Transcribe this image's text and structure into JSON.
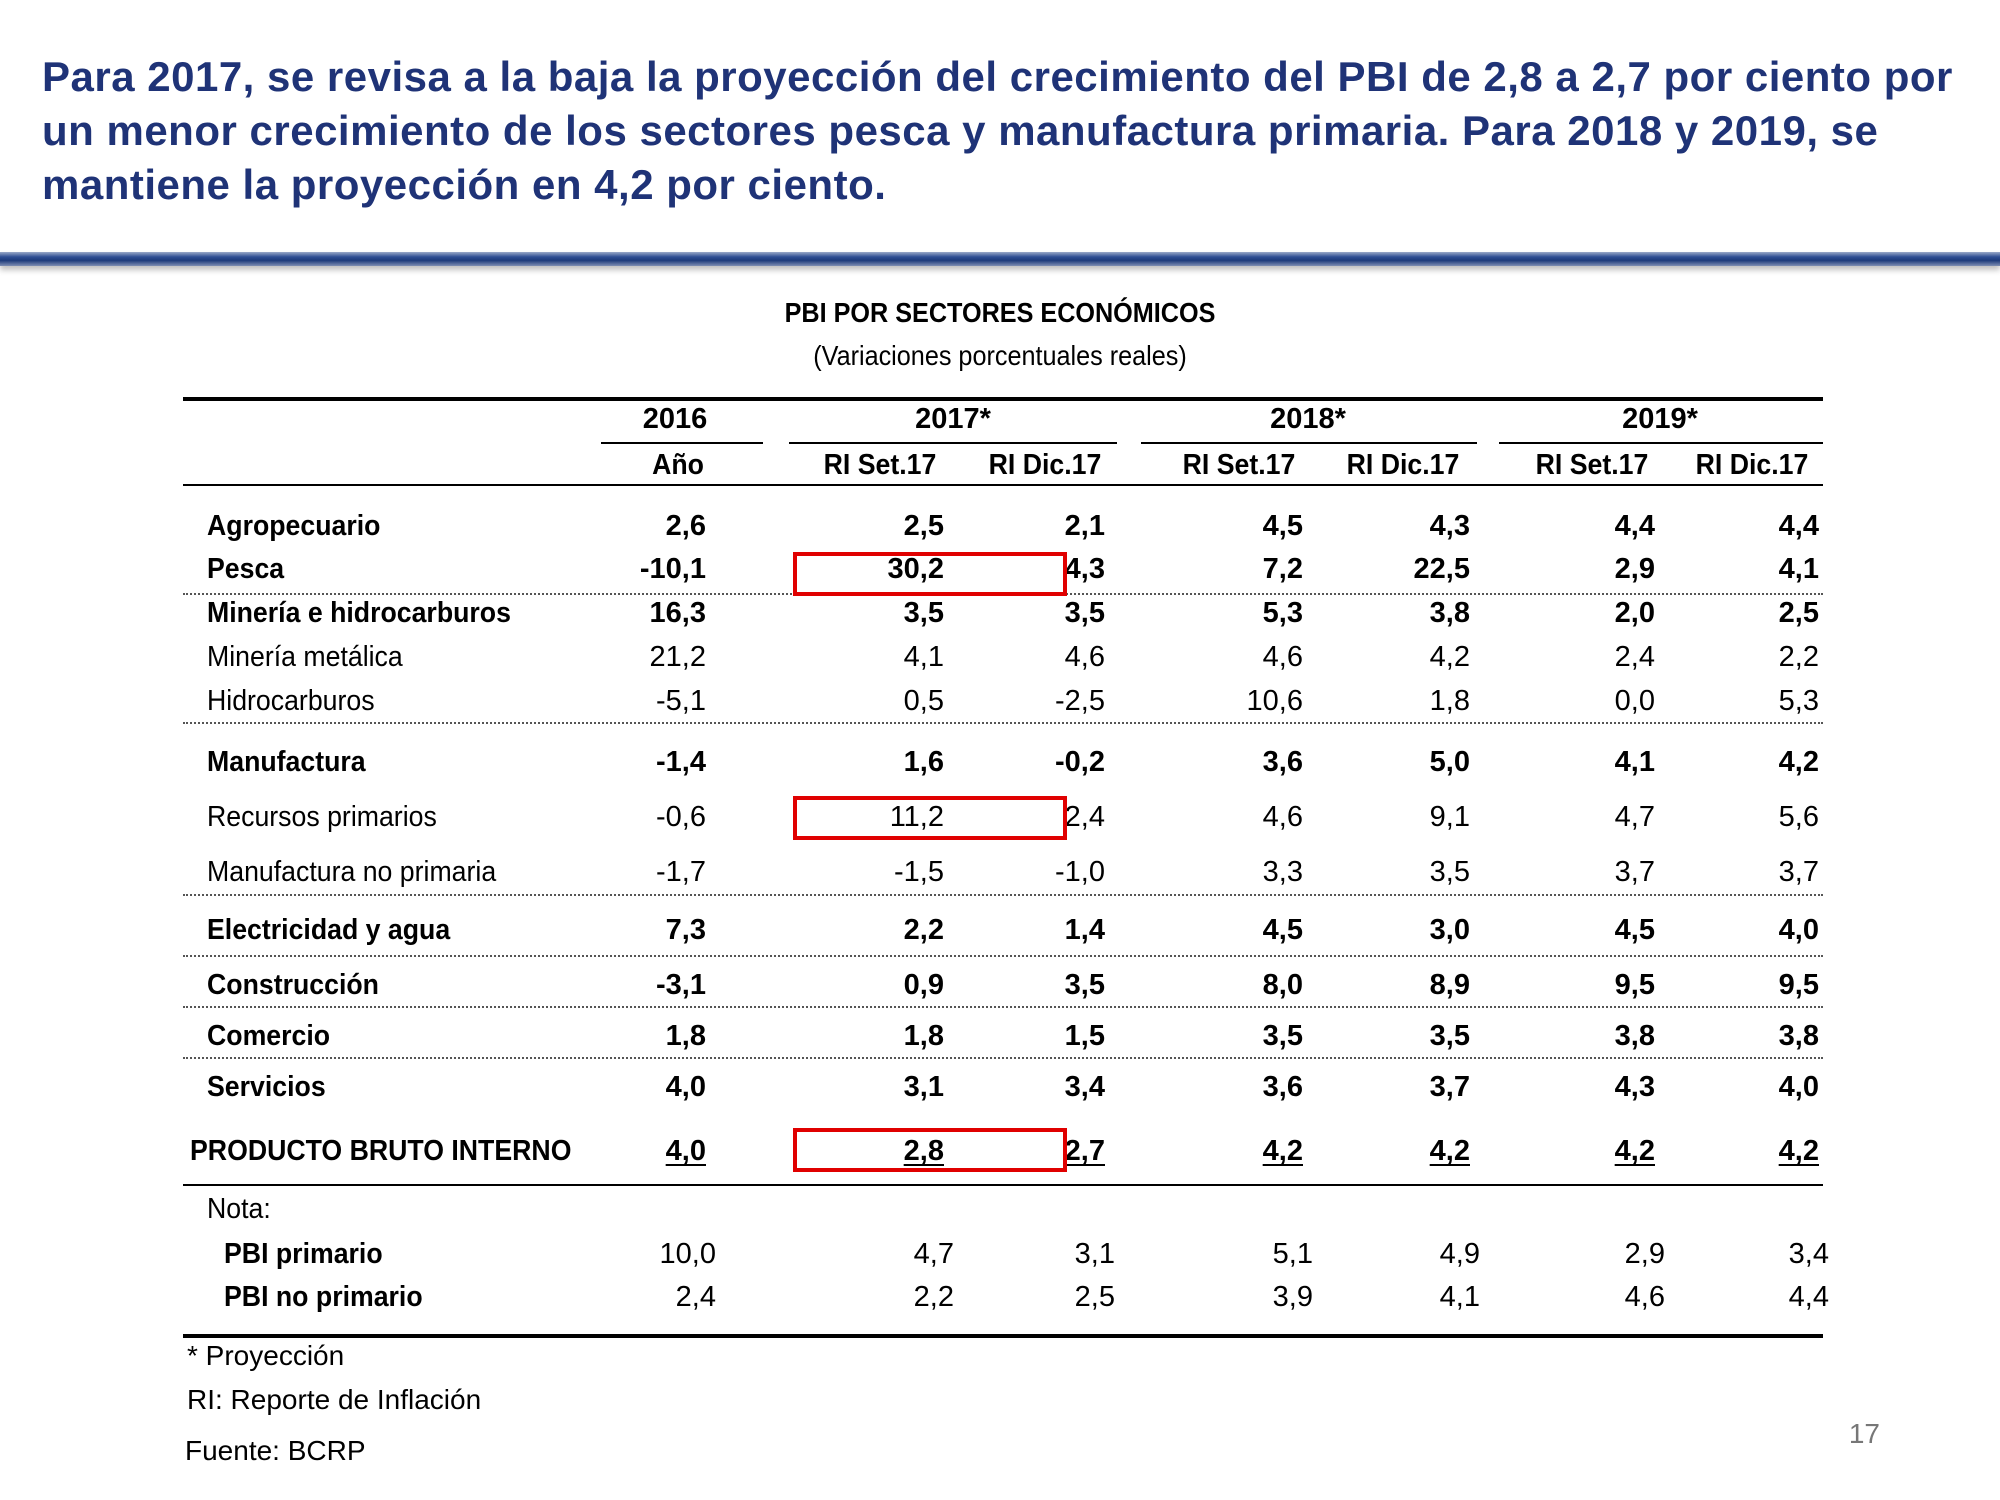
{
  "headline": "Para 2017, se revisa a la baja la proyección del crecimiento del PBI de 2,8 a 2,7 por ciento por un menor crecimiento de los sectores pesca y manufactura primaria. Para 2018 y 2019, se mantiene la proyección en 4,2 por ciento.",
  "table": {
    "title": "PBI POR SECTORES ECONÓMICOS",
    "subtitle": "(Variaciones porcentuales reales)",
    "year_headers": [
      "2016",
      "2017*",
      "2018*",
      "2019*"
    ],
    "sub_headers": [
      "Año",
      "RI Set.17",
      "RI Dic.17",
      "RI Set.17",
      "RI Dic.17",
      "RI Set.17",
      "RI Dic.17"
    ],
    "rows": [
      {
        "label": "Agropecuario",
        "values": [
          "2,6",
          "2,5",
          "2,1",
          "4,5",
          "4,3",
          "4,4",
          "4,4"
        ]
      },
      {
        "label": "Pesca",
        "values": [
          "-10,1",
          "30,2",
          "4,3",
          "7,2",
          "22,5",
          "2,9",
          "4,1"
        ]
      },
      {
        "label": "Minería e hidrocarburos",
        "values": [
          "16,3",
          "3,5",
          "3,5",
          "5,3",
          "3,8",
          "2,0",
          "2,5"
        ]
      },
      {
        "label": "Minería metálica",
        "values": [
          "21,2",
          "4,1",
          "4,6",
          "4,6",
          "4,2",
          "2,4",
          "2,2"
        ]
      },
      {
        "label": "Hidrocarburos",
        "values": [
          "-5,1",
          "0,5",
          "-2,5",
          "10,6",
          "1,8",
          "0,0",
          "5,3"
        ]
      },
      {
        "label": "Manufactura",
        "values": [
          "-1,4",
          "1,6",
          "-0,2",
          "3,6",
          "5,0",
          "4,1",
          "4,2"
        ]
      },
      {
        "label": "Recursos primarios",
        "values": [
          "-0,6",
          "11,2",
          "2,4",
          "4,6",
          "9,1",
          "4,7",
          "5,6"
        ]
      },
      {
        "label": "Manufactura no primaria",
        "values": [
          "-1,7",
          "-1,5",
          "-1,0",
          "3,3",
          "3,5",
          "3,7",
          "3,7"
        ]
      },
      {
        "label": "Electricidad y agua",
        "values": [
          "7,3",
          "2,2",
          "1,4",
          "4,5",
          "3,0",
          "4,5",
          "4,0"
        ]
      },
      {
        "label": "Construcción",
        "values": [
          "-3,1",
          "0,9",
          "3,5",
          "8,0",
          "8,9",
          "9,5",
          "9,5"
        ]
      },
      {
        "label": "Comercio",
        "values": [
          "1,8",
          "1,8",
          "1,5",
          "3,5",
          "3,5",
          "3,8",
          "3,8"
        ]
      },
      {
        "label": "Servicios",
        "values": [
          "4,0",
          "3,1",
          "3,4",
          "3,6",
          "3,7",
          "4,3",
          "4,0"
        ]
      },
      {
        "label": "PRODUCTO BRUTO INTERNO",
        "values": [
          "4,0",
          "2,8",
          "2,7",
          "4,2",
          "4,2",
          "4,2",
          "4,2"
        ]
      }
    ],
    "note_label": "Nota:",
    "note_rows": [
      {
        "label": "PBI primario",
        "values": [
          "10,0",
          "4,7",
          "3,1",
          "5,1",
          "4,9",
          "2,9",
          "3,4"
        ]
      },
      {
        "label": "PBI no primario",
        "values": [
          "2,4",
          "2,2",
          "2,5",
          "3,9",
          "4,1",
          "4,6",
          "4,4"
        ]
      }
    ]
  },
  "footnotes": {
    "projection": "* Proyección",
    "ri": "RI: Reporte de Inflación",
    "source": "Fuente: BCRP"
  },
  "page_number": "17",
  "colors": {
    "headline": "#1f3377",
    "highlight_box": "#e00000"
  }
}
